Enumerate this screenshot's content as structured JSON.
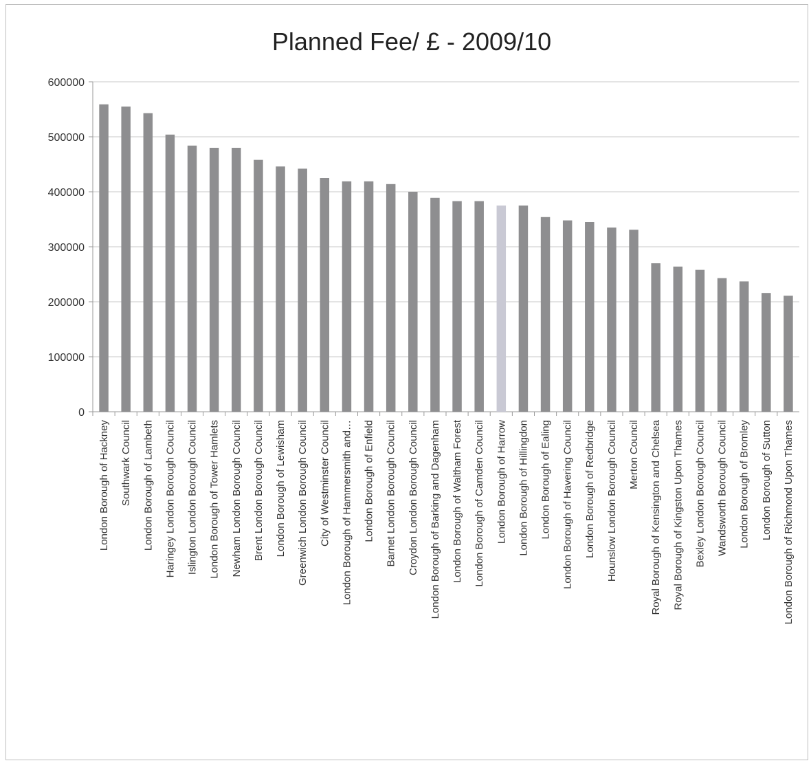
{
  "chart_data": {
    "type": "bar",
    "title": "Planned Fee/ £ - 2009/10",
    "xlabel": "",
    "ylabel": "",
    "ylim": [
      0,
      600000
    ],
    "yticks": [
      0,
      100000,
      200000,
      300000,
      400000,
      500000,
      600000
    ],
    "yticklabels": [
      "0",
      "100000",
      "200000",
      "300000",
      "400000",
      "500000",
      "600000"
    ],
    "grid": true,
    "legend": "none",
    "bar_color": "#8e8e90",
    "highlight_color": "#c9c9d4",
    "highlight_index": 18,
    "categories": [
      "London Borough of Hackney",
      "Southwark Council",
      "London Borough of Lambeth",
      "Haringey London Borough Council",
      "Islington London Borough Council",
      "London Borough of Tower Hamlets",
      "Newham London Borough Council",
      "Brent London Borough Council",
      "London Borough of Lewisham",
      "Greenwich London Borough Council",
      "City of Westminster Council",
      "London Borough of Hammersmith and…",
      "London Borough of Enfield",
      "Barnet London Borough Council",
      "Croydon London Borough Council",
      "London Borough of Barking and Dagenham",
      "London Borough of Waltham Forest",
      "London Borough of Camden Council",
      "London Borough of Harrow",
      "London Borough of Hillingdon",
      "London Borough of Ealing",
      "London Borough of Havering Council",
      "London Borough of Redbridge",
      "Hounslow London Borough Council",
      "Merton Council",
      "Royal Borough of Kensington and Chelsea",
      "Royal Borough of Kingston Upon Thames",
      "Bexley London Borough Council",
      "Wandsworth Borough Council",
      "London Borough of Bromley",
      "London Borough of Sutton",
      "London Borough of Richmond Upon Thames"
    ],
    "values": [
      559000,
      555000,
      543000,
      504000,
      484000,
      480000,
      480000,
      458000,
      446000,
      442000,
      425000,
      419000,
      419000,
      414000,
      400000,
      389000,
      383000,
      383000,
      375000,
      375000,
      354000,
      348000,
      345000,
      335000,
      331000,
      270000,
      264000,
      258000,
      243000,
      237000,
      216000,
      211000
    ]
  }
}
